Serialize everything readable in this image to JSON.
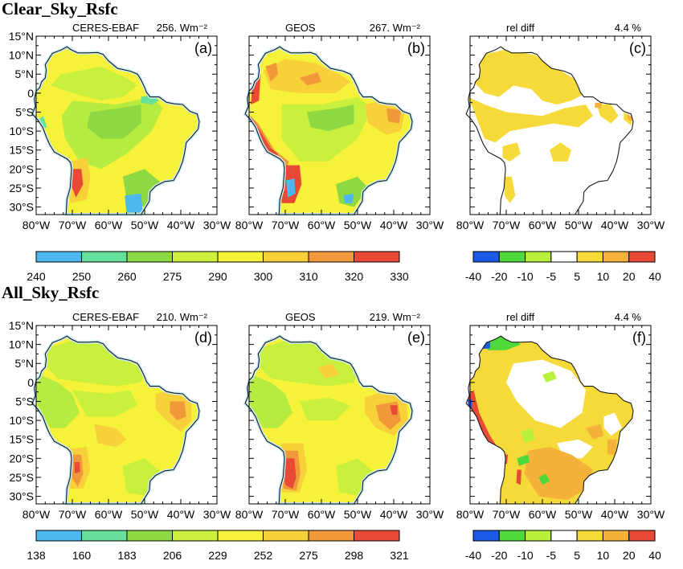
{
  "sections": [
    {
      "title": "Clear_Sky_Rsfc",
      "panels": [
        {
          "tag": "(a)",
          "left": "CERES-EBAF",
          "right": "256. Wm⁻²",
          "kind": "abs"
        },
        {
          "tag": "(b)",
          "left": "GEOS",
          "right": "267. Wm⁻²",
          "kind": "abs"
        },
        {
          "tag": "(c)",
          "left": "rel diff",
          "right": "4.4 %",
          "kind": "diff"
        }
      ],
      "colorbar_abs": {
        "ticks": [
          "240",
          "250",
          "260",
          "275",
          "290",
          "300",
          "310",
          "320",
          "330"
        ],
        "colors": [
          "#4db8f0",
          "#66e09a",
          "#8ed844",
          "#cdf03c",
          "#f6f23a",
          "#f8d03a",
          "#f0983a",
          "#e84a36"
        ]
      },
      "colorbar_diff": {
        "ticks": [
          "-40",
          "-20",
          "-10",
          "-5",
          "5",
          "10",
          "20",
          "40"
        ],
        "colors": [
          "#1a5ae6",
          "#4fd83a",
          "#b8f03c",
          "#ffffff",
          "#f6da3a",
          "#f4b23a",
          "#e84a36"
        ]
      }
    },
    {
      "title": "All_Sky_Rsfc",
      "panels": [
        {
          "tag": "(d)",
          "left": "CERES-EBAF",
          "right": "210. Wm⁻²",
          "kind": "abs"
        },
        {
          "tag": "(e)",
          "left": "GEOS",
          "right": "219. Wm⁻²",
          "kind": "abs"
        },
        {
          "tag": "(f)",
          "left": "rel diff",
          "right": "4.4 %",
          "kind": "diff"
        }
      ],
      "colorbar_abs": {
        "ticks": [
          "138",
          "160",
          "183",
          "206",
          "229",
          "252",
          "275",
          "298",
          "321"
        ],
        "colors": [
          "#4db8f0",
          "#66e09a",
          "#8ed844",
          "#cdf03c",
          "#f6f23a",
          "#f8d03a",
          "#f0983a",
          "#e84a36"
        ]
      },
      "colorbar_diff": {
        "ticks": [
          "-40",
          "-20",
          "-10",
          "-5",
          "5",
          "10",
          "20",
          "40"
        ],
        "colors": [
          "#1a5ae6",
          "#4fd83a",
          "#b8f03c",
          "#ffffff",
          "#f6da3a",
          "#f4b23a",
          "#e84a36"
        ]
      }
    }
  ],
  "lat_labels": [
    "15°N",
    "10°N",
    "5°N",
    "0",
    "5°S",
    "10°S",
    "15°S",
    "20°S",
    "25°S",
    "30°S"
  ],
  "lon_labels": [
    "80°W",
    "70°W",
    "60°W",
    "50°W",
    "40°W",
    "30°W"
  ]
}
